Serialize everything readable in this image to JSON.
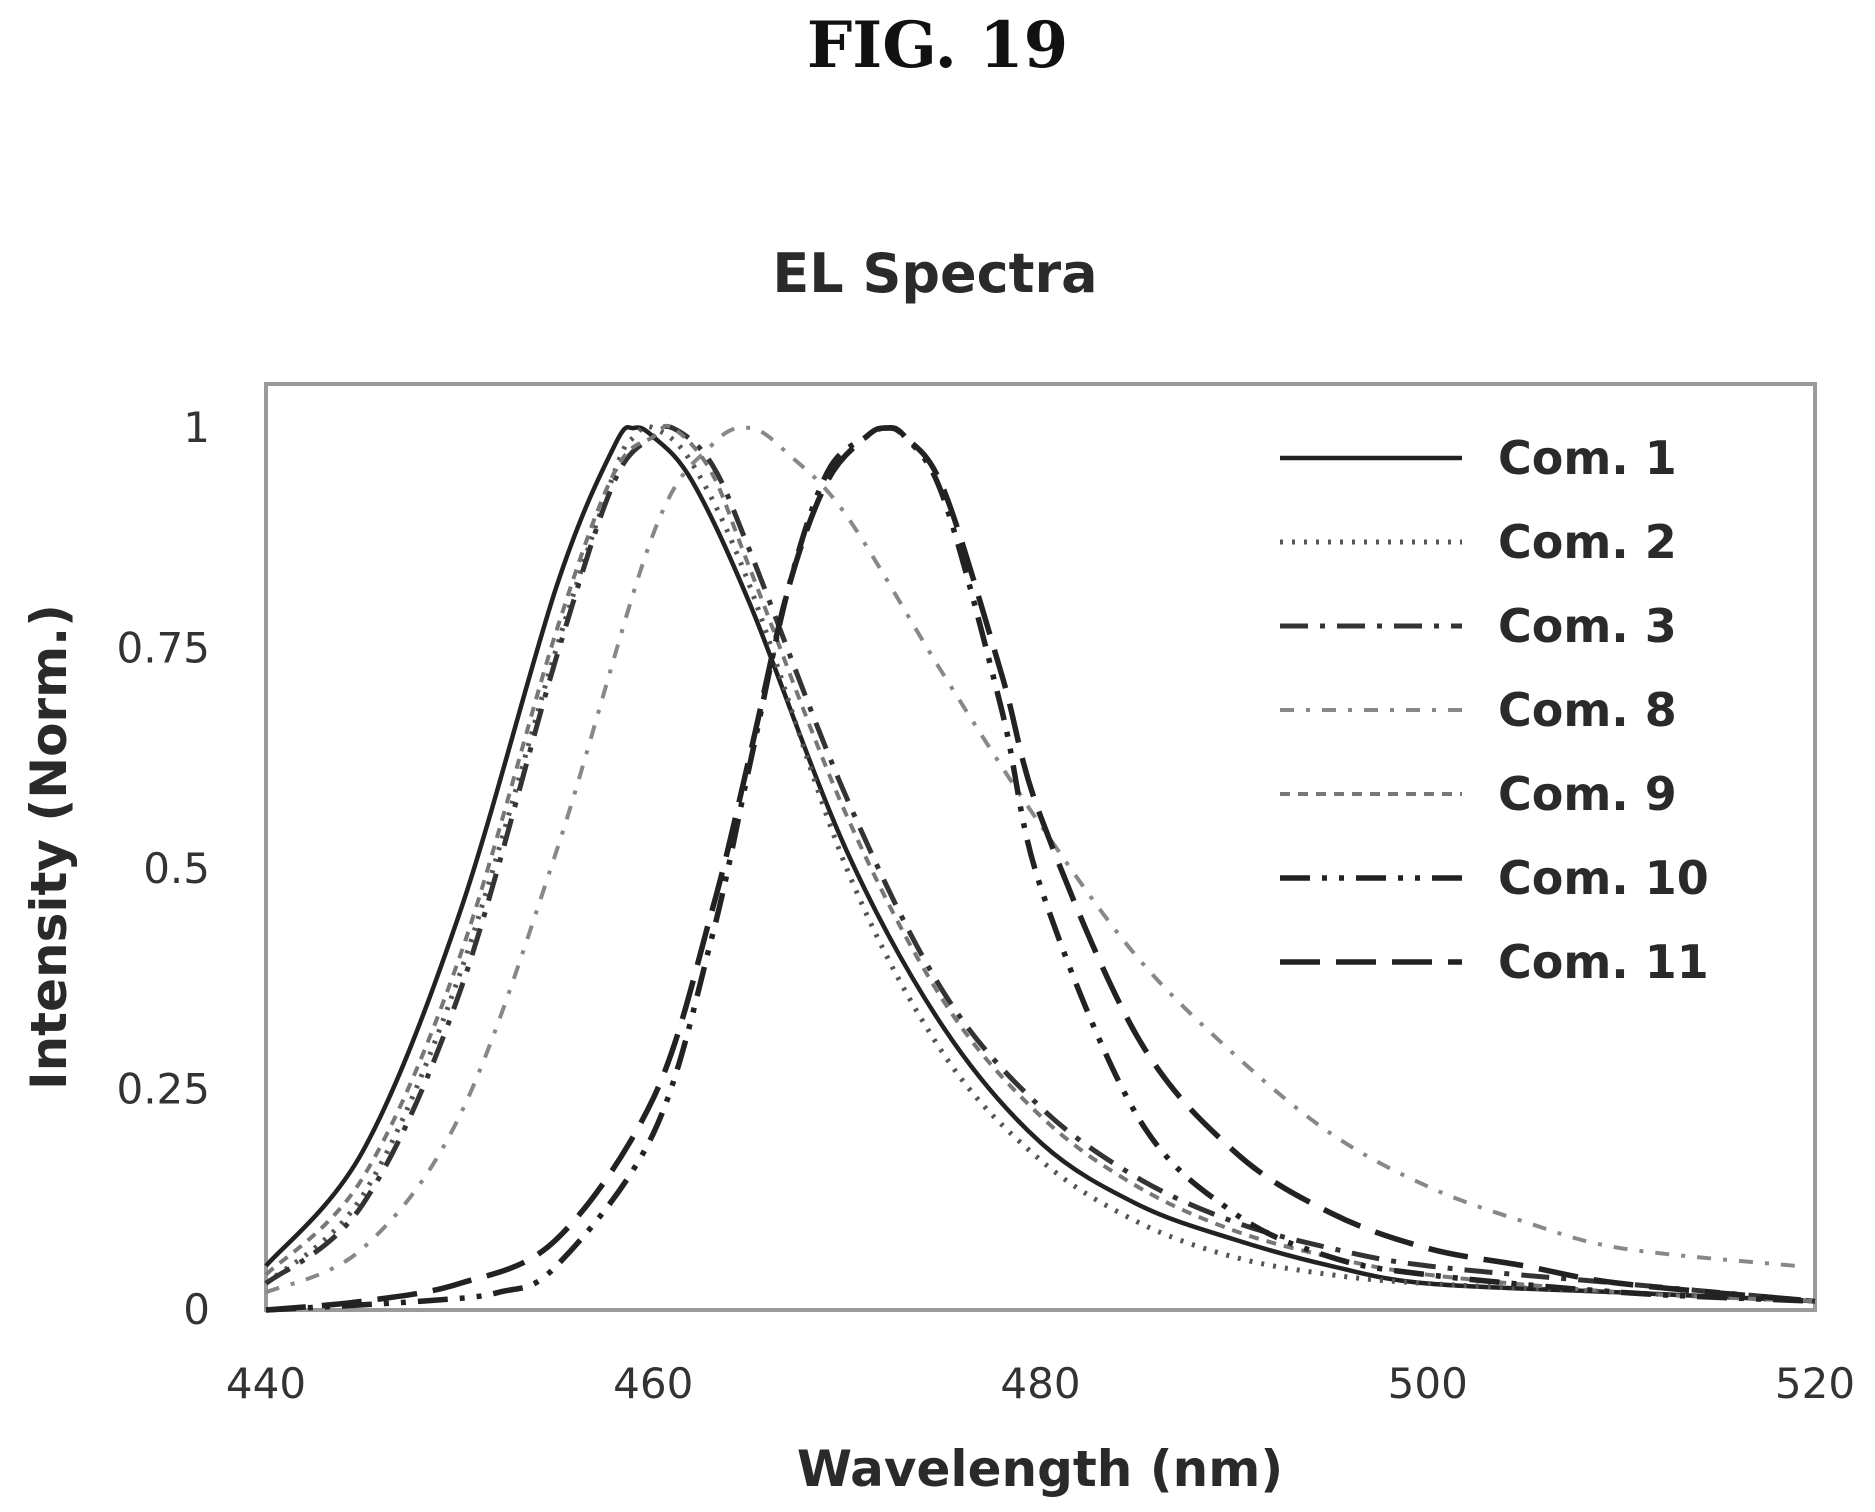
{
  "figure": {
    "label": "FIG. 19"
  },
  "chart_data": {
    "type": "line",
    "title": "EL Spectra",
    "xlabel": "Wavelength (nm)",
    "ylabel": "Intensity (Norm.)",
    "xlim": [
      440,
      520
    ],
    "ylim": [
      0,
      1
    ],
    "xticks": [
      {
        "value": 440,
        "label": "440"
      },
      {
        "value": 460,
        "label": "460"
      },
      {
        "value": 480,
        "label": "480"
      },
      {
        "value": 500,
        "label": "500"
      },
      {
        "value": 520,
        "label": "520"
      }
    ],
    "yticks": [
      {
        "value": 0,
        "label": "0"
      },
      {
        "value": 0.25,
        "label": "0.25"
      },
      {
        "value": 0.5,
        "label": "0.5"
      },
      {
        "value": 0.75,
        "label": "0.75"
      },
      {
        "value": 1,
        "label": "1"
      }
    ],
    "grid": false,
    "legend_position": "top-right",
    "series": [
      {
        "name": "Com. 1",
        "style": "solid",
        "color": "#222222",
        "x": [
          440,
          445,
          450,
          455,
          458,
          459,
          460,
          462,
          465,
          470,
          475,
          480,
          485,
          490,
          495,
          500,
          510,
          520
        ],
        "y": [
          0.05,
          0.18,
          0.45,
          0.82,
          0.98,
          1.0,
          0.99,
          0.94,
          0.8,
          0.52,
          0.32,
          0.19,
          0.12,
          0.08,
          0.05,
          0.03,
          0.02,
          0.01
        ]
      },
      {
        "name": "Com. 2",
        "style": "dotted",
        "color": "#555555",
        "x": [
          440,
          445,
          450,
          455,
          458,
          459,
          460,
          462,
          465,
          470,
          475,
          480,
          485,
          490,
          495,
          500,
          510,
          520
        ],
        "y": [
          0.03,
          0.13,
          0.38,
          0.75,
          0.95,
          0.99,
          1.0,
          0.96,
          0.82,
          0.5,
          0.29,
          0.17,
          0.1,
          0.06,
          0.04,
          0.03,
          0.02,
          0.01
        ]
      },
      {
        "name": "Com. 3",
        "style": "dashdot",
        "color": "#333333",
        "x": [
          440,
          445,
          450,
          455,
          458,
          460,
          461,
          463,
          465,
          470,
          475,
          480,
          485,
          490,
          495,
          500,
          510,
          520
        ],
        "y": [
          0.03,
          0.12,
          0.36,
          0.74,
          0.94,
          0.99,
          1.0,
          0.96,
          0.86,
          0.58,
          0.36,
          0.23,
          0.15,
          0.1,
          0.07,
          0.05,
          0.03,
          0.01
        ]
      },
      {
        "name": "Com. 8",
        "style": "dashdotted-light",
        "color": "#888888",
        "x": [
          440,
          445,
          450,
          455,
          460,
          463,
          465,
          467,
          470,
          475,
          480,
          485,
          490,
          495,
          500,
          505,
          510,
          519
        ],
        "y": [
          0.02,
          0.07,
          0.22,
          0.52,
          0.88,
          0.98,
          1.0,
          0.97,
          0.9,
          0.72,
          0.55,
          0.4,
          0.29,
          0.2,
          0.14,
          0.1,
          0.07,
          0.05
        ]
      },
      {
        "name": "Com. 9",
        "style": "dashed-light",
        "color": "#777777",
        "x": [
          440,
          445,
          450,
          455,
          458,
          460,
          461,
          463,
          465,
          470,
          475,
          480,
          485,
          490,
          495,
          500,
          510,
          520
        ],
        "y": [
          0.04,
          0.15,
          0.4,
          0.77,
          0.95,
          0.99,
          1.0,
          0.95,
          0.84,
          0.56,
          0.35,
          0.22,
          0.14,
          0.09,
          0.06,
          0.04,
          0.02,
          0.01
        ]
      },
      {
        "name": "Com. 10",
        "style": "dashdotdot",
        "color": "#222222",
        "x": [
          440,
          448,
          452,
          455,
          460,
          463,
          465,
          467,
          469,
          471,
          472,
          473,
          475,
          478,
          480,
          485,
          490,
          495,
          500,
          510,
          520
        ],
        "y": [
          0.0,
          0.01,
          0.02,
          0.05,
          0.2,
          0.42,
          0.62,
          0.82,
          0.95,
          0.99,
          1.0,
          0.99,
          0.92,
          0.68,
          0.48,
          0.22,
          0.11,
          0.06,
          0.04,
          0.02,
          0.01
        ]
      },
      {
        "name": "Com. 11",
        "style": "longdash",
        "color": "#222222",
        "x": [
          440,
          445,
          450,
          455,
          460,
          463,
          465,
          467,
          469,
          471,
          472,
          473,
          475,
          478,
          480,
          485,
          490,
          495,
          500,
          505,
          510,
          520
        ],
        "y": [
          0.0,
          0.01,
          0.03,
          0.08,
          0.24,
          0.45,
          0.63,
          0.82,
          0.94,
          0.99,
          1.0,
          0.99,
          0.93,
          0.72,
          0.56,
          0.31,
          0.18,
          0.11,
          0.07,
          0.05,
          0.03,
          0.01
        ]
      }
    ]
  }
}
